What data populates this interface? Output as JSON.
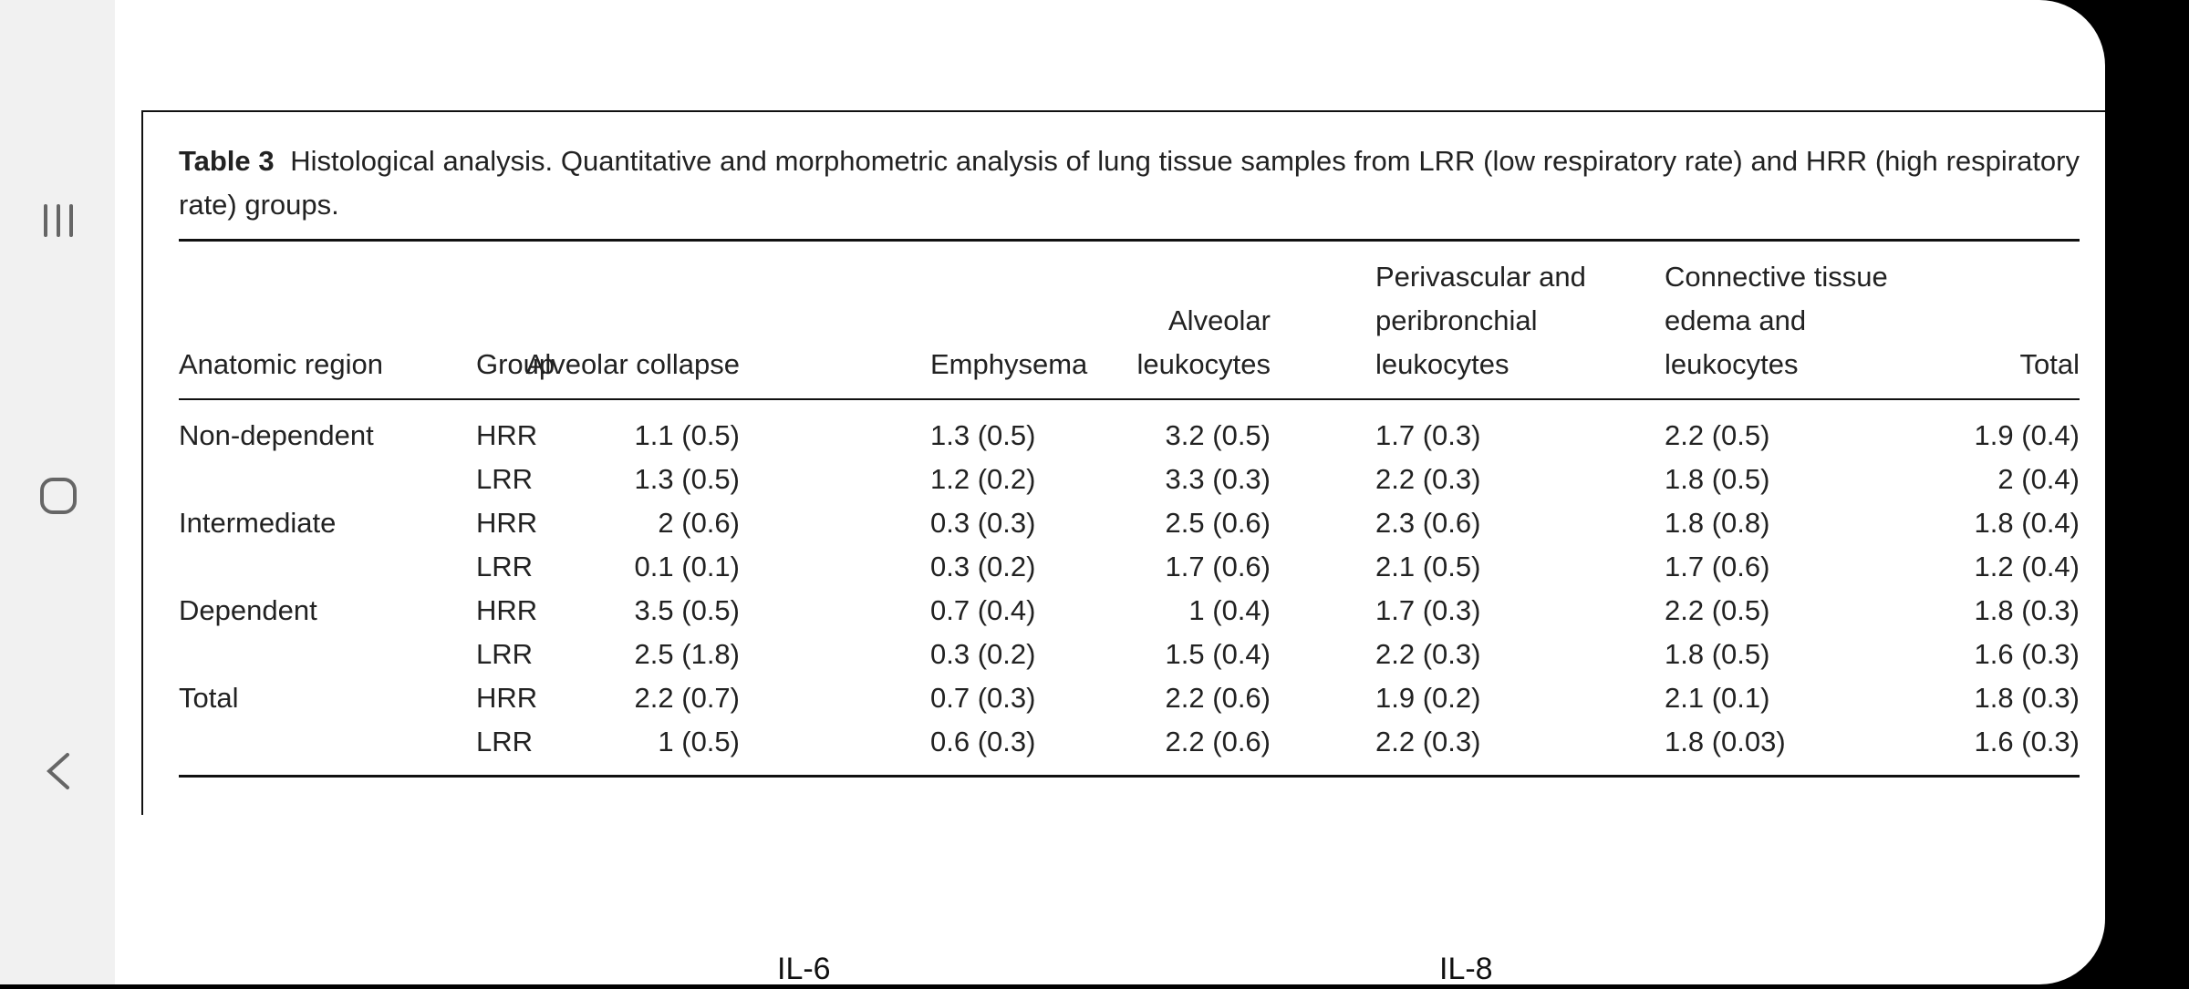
{
  "table": {
    "label": "Table 3",
    "caption": "Histological analysis. Quantitative and morphometric analysis of lung tissue samples from LRR (low respiratory rate) and HRR (high respiratory rate) groups.",
    "header": [
      [
        "Anatomic region"
      ],
      [
        "Group"
      ],
      [
        "Alveolar collapse"
      ],
      [
        "Emphysema"
      ],
      [
        "Alveolar",
        "leukocytes"
      ],
      [
        "Perivascular and",
        "peribronchial",
        "leukocytes"
      ],
      [
        "Connective tissue",
        "edema and",
        "leukocytes"
      ],
      [
        "Total"
      ]
    ],
    "groups": [
      {
        "region": "Non-dependent",
        "rows": [
          [
            "HRR",
            "1.1 (0.5)",
            "1.3 (0.5)",
            "3.2 (0.5)",
            "1.7 (0.3)",
            "2.2 (0.5)",
            "1.9 (0.4)"
          ],
          [
            "LRR",
            "1.3 (0.5)",
            "1.2 (0.2)",
            "3.3 (0.3)",
            "2.2 (0.3)",
            "1.8 (0.5)",
            "2 (0.4)"
          ]
        ]
      },
      {
        "region": "Intermediate",
        "rows": [
          [
            "HRR",
            "2 (0.6)",
            "0.3 (0.3)",
            "2.5 (0.6)",
            "2.3 (0.6)",
            "1.8 (0.8)",
            "1.8 (0.4)"
          ],
          [
            "LRR",
            "0.1 (0.1)",
            "0.3 (0.2)",
            "1.7 (0.6)",
            "2.1 (0.5)",
            "1.7 (0.6)",
            "1.2 (0.4)"
          ]
        ]
      },
      {
        "region": "Dependent",
        "rows": [
          [
            "HRR",
            "3.5 (0.5)",
            "0.7 (0.4)",
            "1 (0.4)",
            "1.7 (0.3)",
            "2.2 (0.5)",
            "1.8 (0.3)"
          ],
          [
            "LRR",
            "2.5 (1.8)",
            "0.3 (0.2)",
            "1.5 (0.4)",
            "2.2 (0.3)",
            "1.8 (0.5)",
            "1.6 (0.3)"
          ]
        ]
      },
      {
        "region": "Total",
        "rows": [
          [
            "HRR",
            "2.2 (0.7)",
            "0.7 (0.3)",
            "2.2 (0.6)",
            "1.9 (0.2)",
            "2.1 (0.1)",
            "1.8 (0.3)"
          ],
          [
            "LRR",
            "1 (0.5)",
            "0.6 (0.3)",
            "2.2 (0.6)",
            "2.2 (0.3)",
            "1.8 (0.03)",
            "1.6 (0.3)"
          ]
        ]
      }
    ]
  },
  "figure": {
    "panels": [
      "IL-6",
      "IL-8"
    ]
  }
}
